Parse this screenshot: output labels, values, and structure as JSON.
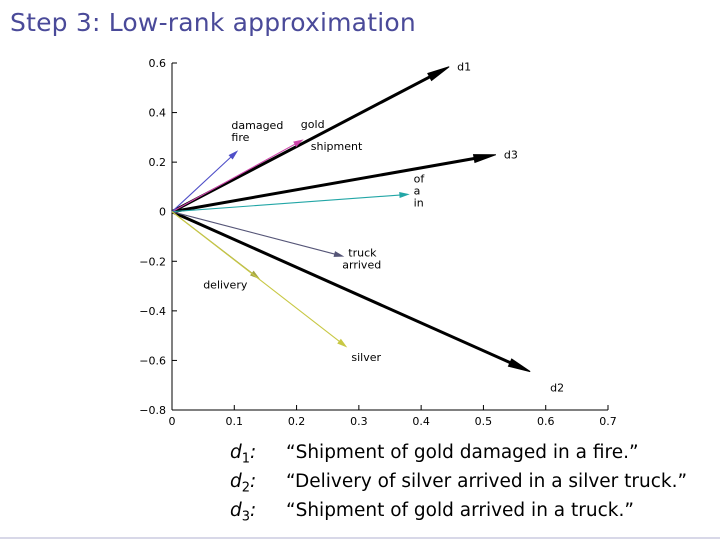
{
  "title": "Step 3: Low-rank approximation",
  "chart_data": {
    "type": "line",
    "xlim": [
      0,
      0.7
    ],
    "ylim": [
      -0.8,
      0.6
    ],
    "x_ticks": [
      0,
      0.1,
      0.2,
      0.3,
      0.4,
      0.5,
      0.6,
      0.7
    ],
    "y_ticks": [
      0.6,
      0.4,
      0.2,
      0,
      -0.2,
      -0.4,
      -0.6,
      -0.8
    ],
    "x_tick_labels": [
      "0",
      "0.1",
      "0.2",
      "0.3",
      "0.4",
      "0.5",
      "0.6",
      "0.7"
    ],
    "y_tick_labels": [
      "0.6",
      "0.4",
      "0.2",
      "0",
      "−0.2",
      "−0.4",
      "−0.6",
      "−0.8"
    ],
    "grid": false,
    "vectors": [
      {
        "labels": [
          "d1"
        ],
        "x": 0.445,
        "y": 0.585,
        "color": "#000000",
        "bold": true
      },
      {
        "labels": [
          "d3"
        ],
        "x": 0.52,
        "y": 0.23,
        "color": "#000000",
        "bold": true
      },
      {
        "labels": [
          "d2"
        ],
        "x": 0.575,
        "y": -0.645,
        "color": "#000000",
        "bold": true
      },
      {
        "labels": [
          "gold",
          "shipment"
        ],
        "x": 0.21,
        "y": 0.29,
        "color": "#cc44aa",
        "bold": false
      },
      {
        "labels": [
          "damaged",
          "fire"
        ],
        "x": 0.105,
        "y": 0.245,
        "color": "#4f4fc8",
        "bold": false
      },
      {
        "labels": [
          "of",
          "a",
          "in"
        ],
        "x": 0.38,
        "y": 0.07,
        "color": "#22a6a6",
        "bold": false
      },
      {
        "labels": [
          "truck",
          "arrived"
        ],
        "x": 0.275,
        "y": -0.18,
        "color": "#555577",
        "bold": false
      },
      {
        "labels": [
          "delivery"
        ],
        "x": 0.14,
        "y": -0.27,
        "color": "#a5a545",
        "bold": false
      },
      {
        "labels": [
          "silver"
        ],
        "x": 0.28,
        "y": -0.545,
        "color": "#c8c844",
        "bold": false
      }
    ]
  },
  "documents": [
    {
      "key": "d",
      "sub": "1",
      "text": "“Shipment of gold damaged in a fire.”"
    },
    {
      "key": "d",
      "sub": "2",
      "text": "“Delivery of silver arrived in a silver truck.”"
    },
    {
      "key": "d",
      "sub": "3",
      "text": "“Shipment of gold arrived in a truck.”"
    }
  ]
}
